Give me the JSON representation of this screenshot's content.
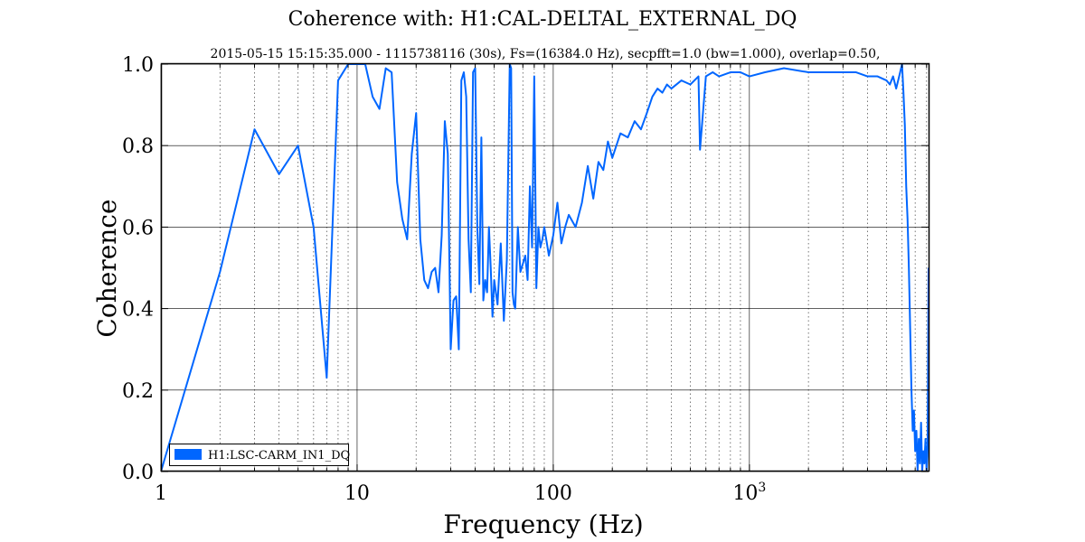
{
  "chart_data": {
    "type": "line",
    "title": "Coherence with: H1:CAL-DELTAL_EXTERNAL_DQ",
    "subtitle": "2015-05-15  15:15:35.000 - 1115738116  (30s),  Fs=(16384.0 Hz),  secpfft=1.0  (bw=1.000),  overlap=0.50,",
    "xlabel": "Frequency (Hz)",
    "ylabel": "Coherence",
    "xscale": "log",
    "xlim": [
      1,
      8192
    ],
    "ylim": [
      0,
      1
    ],
    "grid": true,
    "legend_position": "bottom-left",
    "x_ticks": [
      {
        "value": 1,
        "base": "1",
        "exp": ""
      },
      {
        "value": 10,
        "base": "10",
        "exp": ""
      },
      {
        "value": 100,
        "base": "100",
        "exp": ""
      },
      {
        "value": 1000,
        "base": "10",
        "exp": "3"
      }
    ],
    "y_ticks": [
      {
        "value": 0,
        "label": "0.0"
      },
      {
        "value": 0.2,
        "label": "0.2"
      },
      {
        "value": 0.4,
        "label": "0.4"
      },
      {
        "value": 0.6,
        "label": "0.6"
      },
      {
        "value": 0.8,
        "label": "0.8"
      },
      {
        "value": 1.0,
        "label": "1.0"
      }
    ],
    "series": [
      {
        "name": "H1:LSC-CARM_IN1_DQ",
        "color": "#0066ff",
        "x": [
          1,
          2,
          3,
          4,
          5,
          6,
          7,
          8,
          9,
          10,
          11,
          12,
          13,
          14,
          15,
          16,
          17,
          18,
          19,
          20,
          21,
          22,
          23,
          24,
          25,
          26,
          27,
          28,
          29,
          30,
          31,
          32,
          33,
          34,
          35,
          36,
          37,
          38,
          39,
          40,
          41,
          42,
          43,
          44,
          45,
          46,
          47,
          48,
          49,
          50,
          52,
          54,
          56,
          58,
          60,
          61,
          62,
          63,
          64,
          66,
          68,
          70,
          72,
          74,
          76,
          78,
          80,
          82,
          84,
          86,
          88,
          90,
          95,
          100,
          105,
          110,
          115,
          120,
          130,
          140,
          150,
          160,
          170,
          180,
          190,
          200,
          220,
          240,
          260,
          280,
          300,
          320,
          340,
          360,
          380,
          400,
          450,
          500,
          550,
          560,
          600,
          650,
          700,
          800,
          900,
          1000,
          1200,
          1500,
          2000,
          2500,
          3000,
          3500,
          4000,
          4500,
          5000,
          5200,
          5400,
          5600,
          5800,
          6000,
          6100,
          6200,
          6300,
          6400,
          6500,
          6600,
          6700,
          6800,
          6900,
          7000,
          7100,
          7200,
          7300,
          7400,
          7500,
          7600,
          7700,
          7800,
          7900,
          8000,
          8100,
          8192
        ],
        "y": [
          0.0,
          0.49,
          0.84,
          0.73,
          0.8,
          0.6,
          0.23,
          0.96,
          1.0,
          1.0,
          1.0,
          0.92,
          0.89,
          0.99,
          0.98,
          0.71,
          0.62,
          0.57,
          0.78,
          0.88,
          0.57,
          0.47,
          0.45,
          0.49,
          0.5,
          0.44,
          0.58,
          0.86,
          0.78,
          0.3,
          0.42,
          0.43,
          0.3,
          0.96,
          0.98,
          0.92,
          0.57,
          0.44,
          0.98,
          0.99,
          0.6,
          0.46,
          0.82,
          0.42,
          0.47,
          0.44,
          0.6,
          0.5,
          0.38,
          0.47,
          0.41,
          0.56,
          0.37,
          0.52,
          1.0,
          0.99,
          0.44,
          0.41,
          0.4,
          0.6,
          0.49,
          0.51,
          0.53,
          0.47,
          0.7,
          0.55,
          0.97,
          0.45,
          0.6,
          0.55,
          0.57,
          0.6,
          0.53,
          0.58,
          0.66,
          0.56,
          0.6,
          0.63,
          0.6,
          0.66,
          0.75,
          0.67,
          0.76,
          0.74,
          0.81,
          0.77,
          0.83,
          0.82,
          0.86,
          0.84,
          0.88,
          0.92,
          0.94,
          0.93,
          0.95,
          0.94,
          0.96,
          0.95,
          0.97,
          0.79,
          0.97,
          0.98,
          0.97,
          0.98,
          0.98,
          0.97,
          0.98,
          0.99,
          0.98,
          0.98,
          0.98,
          0.98,
          0.97,
          0.97,
          0.96,
          0.95,
          0.97,
          0.94,
          0.97,
          1.0,
          0.93,
          0.85,
          0.7,
          0.62,
          0.5,
          0.35,
          0.2,
          0.1,
          0.15,
          0.05,
          0.1,
          0.0,
          0.08,
          0.02,
          0.12,
          0.0,
          0.05,
          0.02,
          0.08,
          0.0,
          0.06,
          0.5
        ]
      }
    ]
  }
}
